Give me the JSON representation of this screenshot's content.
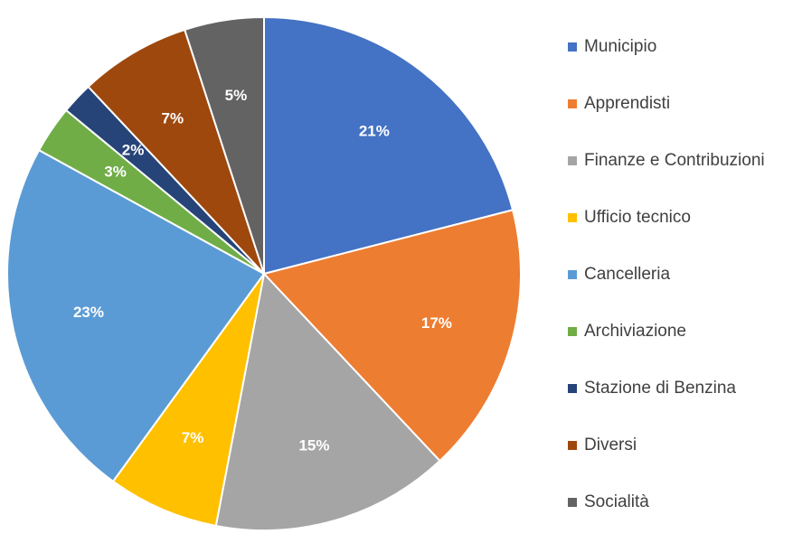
{
  "chart_data": {
    "type": "pie",
    "categories": [
      "Municipio",
      "Apprendisti",
      "Finanze e Contribuzioni",
      "Ufficio tecnico",
      "Cancelleria",
      "Archiviazione",
      "Stazione di Benzina",
      "Diversi",
      "Socialità"
    ],
    "values": [
      21,
      17,
      15,
      7,
      23,
      3,
      2,
      7,
      5
    ],
    "value_labels": [
      "21%",
      "17%",
      "15%",
      "7%",
      "23%",
      "3%",
      "2%",
      "7%",
      "5%"
    ],
    "colors": [
      "#4472c4",
      "#ed7d31",
      "#a5a5a5",
      "#ffc000",
      "#5b9bd5",
      "#70ad47",
      "#264478",
      "#9e480e",
      "#636363"
    ],
    "legend": "right"
  }
}
